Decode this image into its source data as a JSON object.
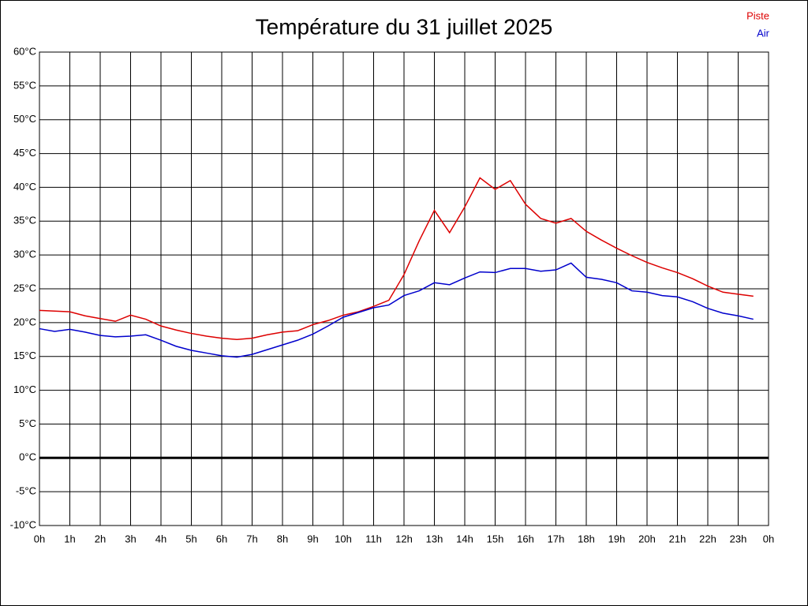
{
  "chart_data": {
    "type": "line",
    "title": "Température du 31 juillet 2025",
    "x": [
      0,
      0.5,
      1,
      1.5,
      2,
      2.5,
      3,
      3.5,
      4,
      4.5,
      5,
      5.5,
      6,
      6.5,
      7,
      7.5,
      8,
      8.5,
      9,
      9.5,
      10,
      10.5,
      11,
      11.5,
      12,
      12.5,
      13,
      13.5,
      14,
      14.5,
      15,
      15.5,
      16,
      16.5,
      17,
      17.5,
      18,
      18.5,
      19,
      19.5,
      20,
      20.5,
      21,
      21.5,
      22,
      22.5,
      23,
      23.5
    ],
    "series": [
      {
        "name": "Piste",
        "color": "#dd0000",
        "values": [
          21.8,
          21.7,
          21.6,
          21.0,
          20.6,
          20.2,
          21.1,
          20.5,
          19.5,
          18.9,
          18.4,
          18.0,
          17.7,
          17.5,
          17.7,
          18.2,
          18.6,
          18.8,
          19.7,
          20.3,
          21.1,
          21.6,
          22.4,
          23.3,
          27.1,
          32.1,
          36.6,
          33.3,
          37.1,
          41.4,
          39.7,
          41.0,
          37.5,
          35.4,
          34.7,
          35.4,
          33.5,
          32.2,
          31.0,
          29.9,
          28.9,
          28.1,
          27.4,
          26.5,
          25.4,
          24.5,
          24.2,
          23.9
        ]
      },
      {
        "name": "Air",
        "color": "#0000cc",
        "values": [
          19.1,
          18.7,
          19.0,
          18.6,
          18.1,
          17.9,
          18.0,
          18.2,
          17.4,
          16.5,
          15.9,
          15.5,
          15.1,
          14.9,
          15.3,
          16.0,
          16.7,
          17.4,
          18.3,
          19.5,
          20.8,
          21.5,
          22.2,
          22.6,
          24.0,
          24.7,
          25.9,
          25.6,
          26.6,
          27.5,
          27.4,
          28.0,
          28.0,
          27.6,
          27.8,
          28.8,
          26.7,
          26.4,
          25.9,
          24.7,
          24.5,
          24.0,
          23.8,
          23.1,
          22.1,
          21.4,
          21.0,
          20.5
        ]
      }
    ],
    "xlim": [
      0,
      24
    ],
    "xticks": [
      {
        "value": 0,
        "label": "0h"
      },
      {
        "value": 1,
        "label": "1h"
      },
      {
        "value": 2,
        "label": "2h"
      },
      {
        "value": 3,
        "label": "3h"
      },
      {
        "value": 4,
        "label": "4h"
      },
      {
        "value": 5,
        "label": "5h"
      },
      {
        "value": 6,
        "label": "6h"
      },
      {
        "value": 7,
        "label": "7h"
      },
      {
        "value": 8,
        "label": "8h"
      },
      {
        "value": 9,
        "label": "9h"
      },
      {
        "value": 10,
        "label": "10h"
      },
      {
        "value": 11,
        "label": "11h"
      },
      {
        "value": 12,
        "label": "12h"
      },
      {
        "value": 13,
        "label": "13h"
      },
      {
        "value": 14,
        "label": "14h"
      },
      {
        "value": 15,
        "label": "15h"
      },
      {
        "value": 16,
        "label": "16h"
      },
      {
        "value": 17,
        "label": "17h"
      },
      {
        "value": 18,
        "label": "18h"
      },
      {
        "value": 19,
        "label": "19h"
      },
      {
        "value": 20,
        "label": "20h"
      },
      {
        "value": 21,
        "label": "21h"
      },
      {
        "value": 22,
        "label": "22h"
      },
      {
        "value": 23,
        "label": "23h"
      },
      {
        "value": 24,
        "label": "0h"
      }
    ],
    "ylim": [
      -10,
      60
    ],
    "yticks": [
      {
        "value": -10,
        "label": "-10°C"
      },
      {
        "value": -5,
        "label": "-5°C"
      },
      {
        "value": 0,
        "label": "0°C"
      },
      {
        "value": 5,
        "label": "5°C"
      },
      {
        "value": 10,
        "label": "10°C"
      },
      {
        "value": 15,
        "label": "15°C"
      },
      {
        "value": 20,
        "label": "20°C"
      },
      {
        "value": 25,
        "label": "25°C"
      },
      {
        "value": 30,
        "label": "30°C"
      },
      {
        "value": 35,
        "label": "35°C"
      },
      {
        "value": 40,
        "label": "40°C"
      },
      {
        "value": 45,
        "label": "45°C"
      },
      {
        "value": 50,
        "label": "50°C"
      },
      {
        "value": 55,
        "label": "55°C"
      },
      {
        "value": 60,
        "label": "60°C"
      }
    ],
    "grid": true,
    "legend": "top-right"
  }
}
